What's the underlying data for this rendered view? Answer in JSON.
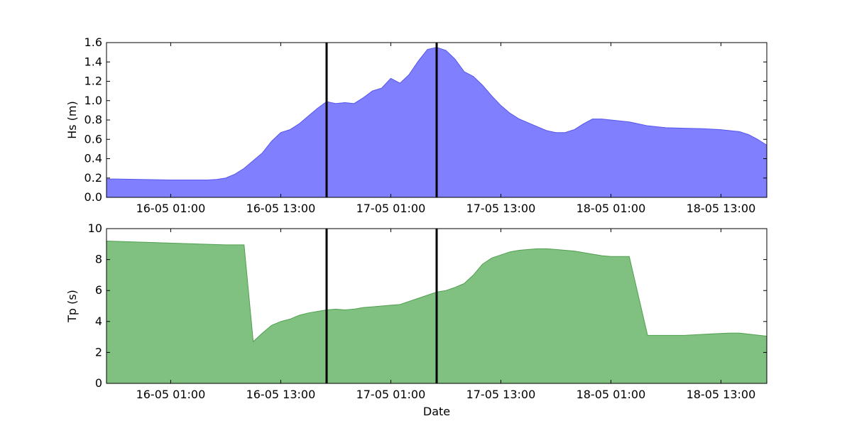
{
  "chart_data": [
    {
      "type": "area",
      "xlabel": "",
      "ylabel": "Hs (m)",
      "xlim": [
        "2016-05-15 18:00",
        "2016-05-18 18:00"
      ],
      "ylim": [
        0,
        1.6
      ],
      "grid": false,
      "yticks": [
        0.0,
        0.2,
        0.4,
        0.6,
        0.8,
        1.0,
        1.2,
        1.4,
        1.6
      ],
      "ytick_labels": [
        "0.0",
        "0.2",
        "0.4",
        "0.6",
        "0.8",
        "1.0",
        "1.2",
        "1.4",
        "1.6"
      ],
      "xtick_labels": [
        "16-05 01:00",
        "16-05 13:00",
        "17-05 01:00",
        "17-05 13:00",
        "18-05 01:00",
        "18-05 13:00"
      ],
      "vlines": [
        "2016-05-16 18:00",
        "2016-05-17 06:00"
      ],
      "colors": {
        "fill": "#8080ff",
        "line": "#5555ee",
        "vline": "#000000"
      },
      "series": [
        {
          "x": [
            "2016-05-15 18:00",
            "2016-05-15 19:00",
            "2016-05-16 01:00",
            "2016-05-16 05:00",
            "2016-05-16 06:00",
            "2016-05-16 07:00",
            "2016-05-16 08:00",
            "2016-05-16 09:00",
            "2016-05-16 10:00",
            "2016-05-16 11:00",
            "2016-05-16 12:00",
            "2016-05-16 13:00",
            "2016-05-16 14:00",
            "2016-05-16 15:00",
            "2016-05-16 16:00",
            "2016-05-16 17:00",
            "2016-05-16 18:00",
            "2016-05-16 19:00",
            "2016-05-16 20:00",
            "2016-05-16 21:00",
            "2016-05-16 22:00",
            "2016-05-16 23:00",
            "2016-05-17 00:00",
            "2016-05-17 01:00",
            "2016-05-17 02:00",
            "2016-05-17 03:00",
            "2016-05-17 04:00",
            "2016-05-17 05:00",
            "2016-05-17 06:00",
            "2016-05-17 07:00",
            "2016-05-17 08:00",
            "2016-05-17 09:00",
            "2016-05-17 10:00",
            "2016-05-17 11:00",
            "2016-05-17 12:00",
            "2016-05-17 13:00",
            "2016-05-17 14:00",
            "2016-05-17 15:00",
            "2016-05-17 16:00",
            "2016-05-17 17:00",
            "2016-05-17 18:00",
            "2016-05-17 19:00",
            "2016-05-17 20:00",
            "2016-05-17 21:00",
            "2016-05-17 22:00",
            "2016-05-17 23:00",
            "2016-05-18 00:00",
            "2016-05-18 01:00",
            "2016-05-18 03:00",
            "2016-05-18 05:00",
            "2016-05-18 07:00",
            "2016-05-18 09:00",
            "2016-05-18 11:00",
            "2016-05-18 13:00",
            "2016-05-18 15:00",
            "2016-05-18 16:00",
            "2016-05-18 17:00",
            "2016-05-18 18:00"
          ],
          "values": [
            0.19,
            0.19,
            0.18,
            0.18,
            0.185,
            0.2,
            0.24,
            0.3,
            0.38,
            0.46,
            0.58,
            0.67,
            0.7,
            0.76,
            0.84,
            0.92,
            0.99,
            0.97,
            0.98,
            0.97,
            1.03,
            1.1,
            1.13,
            1.23,
            1.18,
            1.27,
            1.41,
            1.53,
            1.55,
            1.52,
            1.43,
            1.3,
            1.25,
            1.16,
            1.05,
            0.95,
            0.87,
            0.81,
            0.77,
            0.73,
            0.69,
            0.67,
            0.67,
            0.7,
            0.76,
            0.81,
            0.81,
            0.8,
            0.78,
            0.74,
            0.72,
            0.715,
            0.71,
            0.7,
            0.68,
            0.65,
            0.6,
            0.54
          ]
        }
      ]
    },
    {
      "type": "area",
      "xlabel": "Date",
      "ylabel": "Tp (s)",
      "xlim": [
        "2016-05-15 18:00",
        "2016-05-18 18:00"
      ],
      "ylim": [
        0,
        10
      ],
      "grid": false,
      "yticks": [
        0,
        2,
        4,
        6,
        8,
        10
      ],
      "ytick_labels": [
        "0",
        "2",
        "4",
        "6",
        "8",
        "10"
      ],
      "xtick_labels": [
        "16-05 01:00",
        "16-05 13:00",
        "17-05 01:00",
        "17-05 13:00",
        "18-05 01:00",
        "18-05 13:00"
      ],
      "vlines": [
        "2016-05-16 18:00",
        "2016-05-17 06:00"
      ],
      "colors": {
        "fill": "#80c080",
        "line": "#50a050",
        "vline": "#000000"
      },
      "series": [
        {
          "x": [
            "2016-05-15 18:00",
            "2016-05-16 07:00",
            "2016-05-16 09:00",
            "2016-05-16 10:00",
            "2016-05-16 11:00",
            "2016-05-16 12:00",
            "2016-05-16 13:00",
            "2016-05-16 14:00",
            "2016-05-16 15:00",
            "2016-05-16 16:00",
            "2016-05-16 17:00",
            "2016-05-16 18:00",
            "2016-05-16 19:00",
            "2016-05-16 20:00",
            "2016-05-16 21:00",
            "2016-05-16 22:00",
            "2016-05-16 23:00",
            "2016-05-17 00:00",
            "2016-05-17 01:00",
            "2016-05-17 02:00",
            "2016-05-17 03:00",
            "2016-05-17 04:00",
            "2016-05-17 05:00",
            "2016-05-17 06:00",
            "2016-05-17 07:00",
            "2016-05-17 08:00",
            "2016-05-17 09:00",
            "2016-05-17 10:00",
            "2016-05-17 11:00",
            "2016-05-17 12:00",
            "2016-05-17 13:00",
            "2016-05-17 14:00",
            "2016-05-17 15:00",
            "2016-05-17 16:00",
            "2016-05-17 17:00",
            "2016-05-17 18:00",
            "2016-05-17 19:00",
            "2016-05-17 20:00",
            "2016-05-17 21:00",
            "2016-05-17 22:00",
            "2016-05-17 23:00",
            "2016-05-18 00:00",
            "2016-05-18 01:00",
            "2016-05-18 02:00",
            "2016-05-18 03:00",
            "2016-05-18 05:00",
            "2016-05-18 06:00",
            "2016-05-18 09:00",
            "2016-05-18 12:00",
            "2016-05-18 14:00",
            "2016-05-18 15:00",
            "2016-05-18 18:00"
          ],
          "values": [
            9.2,
            8.95,
            8.95,
            2.7,
            3.25,
            3.75,
            4.0,
            4.15,
            4.4,
            4.55,
            4.65,
            4.75,
            4.8,
            4.75,
            4.8,
            4.9,
            4.95,
            5.0,
            5.05,
            5.1,
            5.3,
            5.5,
            5.7,
            5.9,
            6.0,
            6.2,
            6.45,
            7.0,
            7.7,
            8.1,
            8.3,
            8.5,
            8.6,
            8.65,
            8.7,
            8.7,
            8.65,
            8.6,
            8.55,
            8.45,
            8.35,
            8.25,
            8.2,
            8.2,
            8.2,
            3.1,
            3.1,
            3.1,
            3.2,
            3.25,
            3.25,
            3.05
          ]
        }
      ]
    }
  ]
}
